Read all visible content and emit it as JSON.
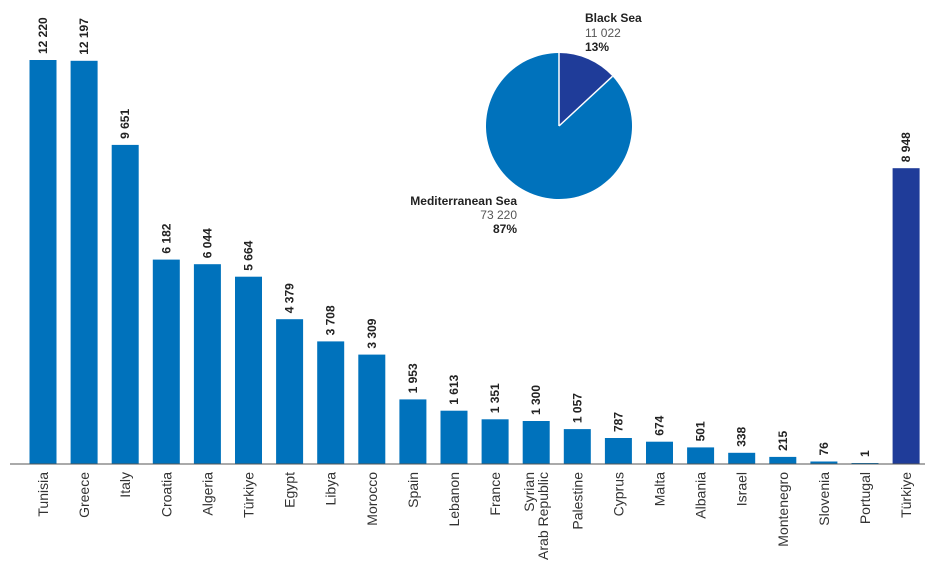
{
  "chart_data": [
    {
      "type": "bar",
      "categories": [
        "Tunisia",
        "Greece",
        "Italy",
        "Croatia",
        "Algeria",
        "Türkiye",
        "Egypt",
        "Libya",
        "Morocco",
        "Spain",
        "Lebanon",
        "France",
        "Syrian Arab Republic",
        "Palestine",
        "Cyprus",
        "Malta",
        "Albania",
        "Israel",
        "Montenegro",
        "Slovenia",
        "Portugal",
        "Türkiye"
      ],
      "values": [
        12220,
        12197,
        9651,
        6182,
        6044,
        5664,
        4379,
        3708,
        3309,
        1953,
        1613,
        1351,
        1300,
        1057,
        787,
        674,
        501,
        338,
        215,
        76,
        1,
        8948
      ],
      "value_labels": [
        "12 220",
        "12 197",
        "9 651",
        "6 182",
        "6 044",
        "5 664",
        "4 379",
        "3 708",
        "3 309",
        "1 953",
        "1 613",
        "1 351",
        "1 300",
        "1 057",
        "787",
        "674",
        "501",
        "338",
        "215",
        "76",
        "1",
        "8 948"
      ],
      "category_label_lines": [
        [
          "Tunisia"
        ],
        [
          "Greece"
        ],
        [
          "Italy"
        ],
        [
          "Croatia"
        ],
        [
          "Algeria"
        ],
        [
          "Türkiye"
        ],
        [
          "Egypt"
        ],
        [
          "Libya"
        ],
        [
          "Morocco"
        ],
        [
          "Spain"
        ],
        [
          "Lebanon"
        ],
        [
          "France"
        ],
        [
          "Syrian",
          "Arab Republic"
        ],
        [
          "Palestine"
        ],
        [
          "Cyprus"
        ],
        [
          "Malta"
        ],
        [
          "Albania"
        ],
        [
          "Israel"
        ],
        [
          "Montenegro"
        ],
        [
          "Slovenia"
        ],
        [
          "Portugal"
        ],
        [
          "Türkiye"
        ]
      ],
      "groups": [
        "Mediterranean Sea",
        "Mediterranean Sea",
        "Mediterranean Sea",
        "Mediterranean Sea",
        "Mediterranean Sea",
        "Mediterranean Sea",
        "Mediterranean Sea",
        "Mediterranean Sea",
        "Mediterranean Sea",
        "Mediterranean Sea",
        "Mediterranean Sea",
        "Mediterranean Sea",
        "Mediterranean Sea",
        "Mediterranean Sea",
        "Mediterranean Sea",
        "Mediterranean Sea",
        "Mediterranean Sea",
        "Mediterranean Sea",
        "Mediterranean Sea",
        "Mediterranean Sea",
        "Mediterranean Sea",
        "Black Sea"
      ],
      "ylim": [
        0,
        12220
      ],
      "grid": false,
      "colors": {
        "Mediterranean Sea": "#0072bc",
        "Black Sea": "#1f3c99"
      },
      "title": "",
      "xlabel": "",
      "ylabel": ""
    },
    {
      "type": "pie",
      "slices": [
        {
          "name": "Black Sea",
          "value_label": "11 022",
          "value": 11022,
          "percent_label": "13%",
          "color": "#1f3c99"
        },
        {
          "name": "Mediterranean Sea",
          "value_label": "73 220",
          "value": 73220,
          "percent_label": "87%",
          "color": "#0072bc"
        }
      ],
      "slice_border_color": "#ffffff"
    }
  ]
}
